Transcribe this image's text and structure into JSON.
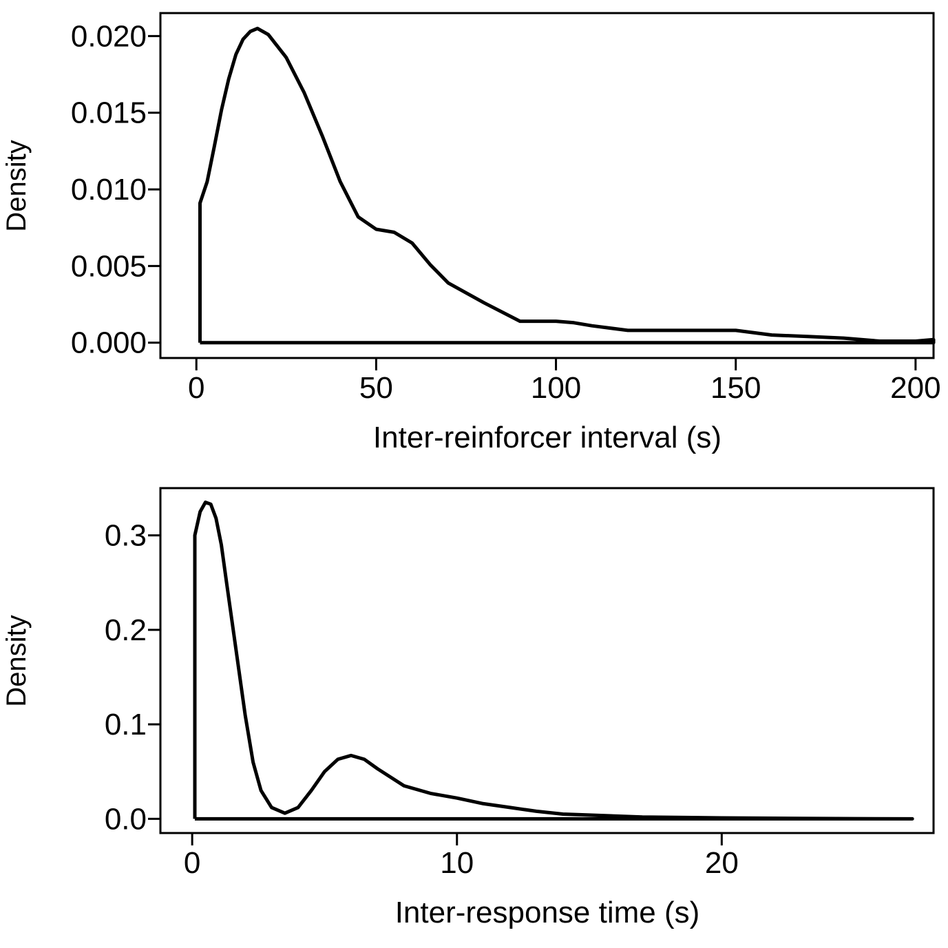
{
  "chart_data": [
    {
      "type": "line",
      "title": "",
      "xlabel": "Inter-reinforcer interval (s)",
      "ylabel": "Density",
      "xlim": [
        -10,
        205
      ],
      "ylim": [
        -0.001,
        0.0215
      ],
      "xticks": [
        0,
        50,
        100,
        150,
        200
      ],
      "xtick_labels": [
        "0",
        "50",
        "100",
        "150",
        "200"
      ],
      "yticks": [
        0.0,
        0.005,
        0.01,
        0.015,
        0.02
      ],
      "ytick_labels": [
        "0.000",
        "0.005",
        "0.010",
        "0.015",
        "0.020"
      ],
      "grid": false,
      "series": [
        {
          "x": [
            1,
            1,
            3,
            5,
            7,
            9,
            11,
            13,
            15,
            17,
            20,
            25,
            30,
            35,
            40,
            45,
            50,
            55,
            60,
            65,
            70,
            80,
            90,
            100,
            105,
            110,
            120,
            130,
            140,
            145,
            150,
            160,
            170,
            180,
            190,
            200,
            205,
            205,
            1
          ],
          "y": [
            0.0,
            0.0091,
            0.0105,
            0.0128,
            0.0152,
            0.0172,
            0.0188,
            0.0198,
            0.0203,
            0.0205,
            0.0201,
            0.0186,
            0.0163,
            0.0135,
            0.0105,
            0.0082,
            0.0074,
            0.0072,
            0.0065,
            0.0051,
            0.0039,
            0.0026,
            0.0014,
            0.0014,
            0.0013,
            0.0011,
            0.0008,
            0.0008,
            0.0008,
            0.0008,
            0.0008,
            0.0005,
            0.0004,
            0.0003,
            0.0001,
            0.0001,
            0.0002,
            0.0,
            0.0
          ]
        }
      ]
    },
    {
      "type": "line",
      "title": "",
      "xlabel": "Inter-response time (s)",
      "ylabel": "Density",
      "xlim": [
        -1.2,
        28
      ],
      "ylim": [
        -0.015,
        0.35
      ],
      "xticks": [
        0,
        10,
        20
      ],
      "xtick_labels": [
        "0",
        "10",
        "20"
      ],
      "yticks": [
        0.0,
        0.1,
        0.2,
        0.3
      ],
      "ytick_labels": [
        "0.0",
        "0.1",
        "0.2",
        "0.3"
      ],
      "grid": false,
      "series": [
        {
          "x": [
            0.1,
            0.1,
            0.3,
            0.5,
            0.7,
            0.9,
            1.1,
            1.3,
            1.6,
            2.0,
            2.3,
            2.6,
            3.0,
            3.5,
            4.0,
            4.5,
            5.0,
            5.5,
            6.0,
            6.5,
            7.0,
            8.0,
            9.0,
            10.0,
            11.0,
            12.0,
            13.0,
            14.0,
            15.0,
            17.0,
            20.0,
            23.0,
            25.0,
            27.2,
            27.2,
            0.1
          ],
          "y": [
            0.0,
            0.3,
            0.325,
            0.335,
            0.333,
            0.318,
            0.29,
            0.25,
            0.19,
            0.11,
            0.06,
            0.03,
            0.012,
            0.006,
            0.012,
            0.03,
            0.05,
            0.063,
            0.067,
            0.063,
            0.053,
            0.035,
            0.027,
            0.022,
            0.016,
            0.012,
            0.008,
            0.005,
            0.004,
            0.002,
            0.001,
            0.0005,
            0.0002,
            0.0,
            0.0,
            0.0
          ]
        }
      ]
    }
  ]
}
